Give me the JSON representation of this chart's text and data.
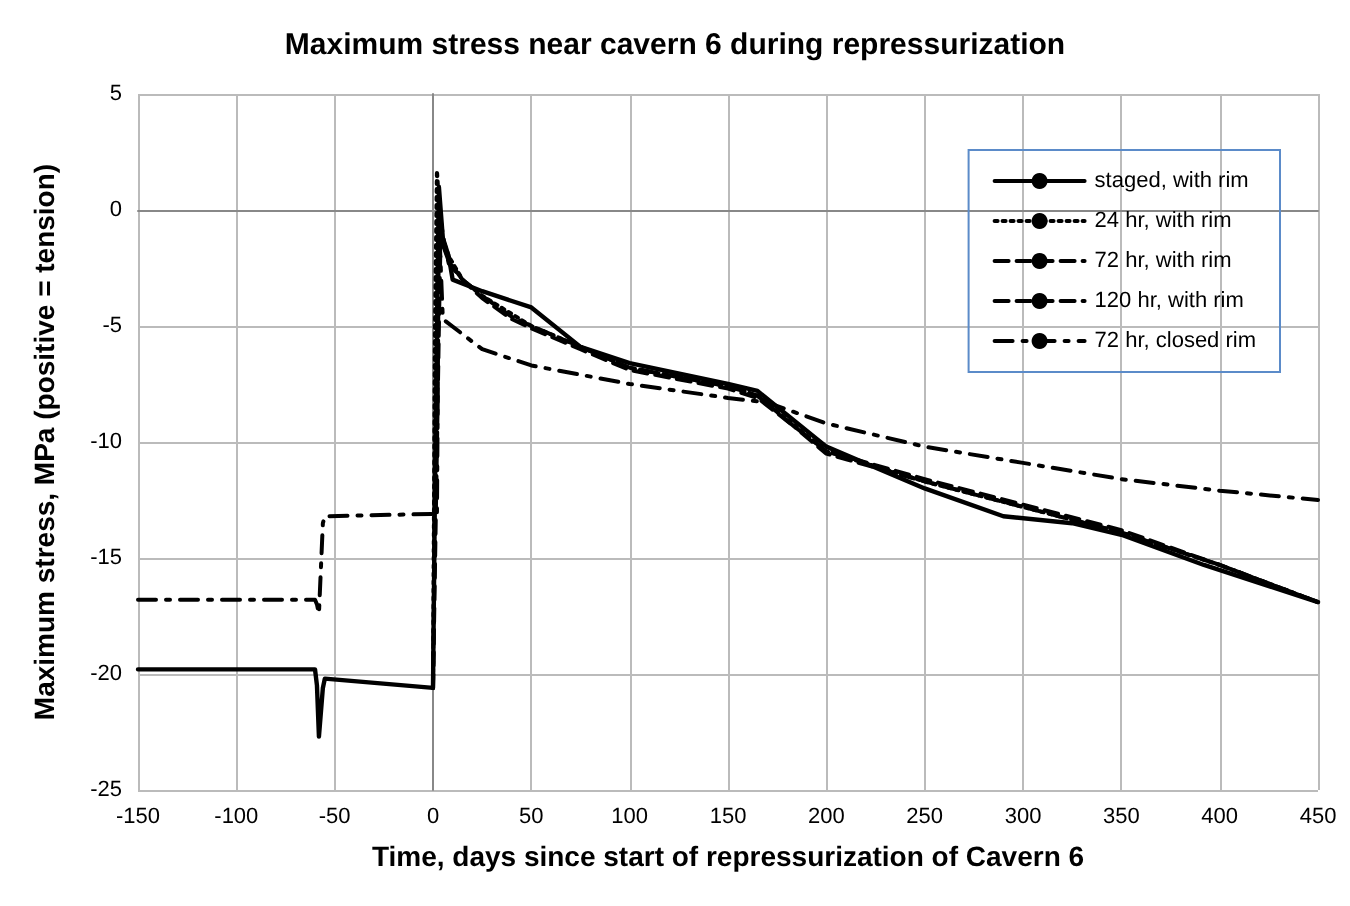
{
  "chart_data": {
    "type": "line",
    "title": "Maximum stress near cavern 6 during repressurization",
    "xlabel": "Time, days since start of repressurization of Cavern 6",
    "ylabel": "Maximum stress, MPa (positive = tension)",
    "xlim": [
      -150,
      450
    ],
    "xticks": [
      -150,
      -100,
      -50,
      0,
      50,
      100,
      150,
      200,
      250,
      300,
      350,
      400,
      450
    ],
    "ylim": [
      -25,
      5
    ],
    "yticks": [
      -25,
      -20,
      -15,
      -10,
      -5,
      0,
      5
    ],
    "grid": true,
    "legend": "top right",
    "marker": "none",
    "series": [
      {
        "name": "staged, with rim",
        "color": "#000000",
        "line_style": "solid",
        "x": [
          -150,
          -60,
          -59,
          -58,
          -56,
          -55,
          0,
          1,
          3,
          5,
          8,
          10,
          25,
          50,
          75,
          100,
          150,
          165,
          200,
          250,
          290,
          325,
          350,
          392,
          450
        ],
        "values": [
          -19.8,
          -19.8,
          -20.5,
          -22.7,
          -20.6,
          -20.2,
          -20.6,
          -12,
          1.0,
          -1.2,
          -2.0,
          -3.0,
          -3.5,
          -4.2,
          -5.9,
          -6.6,
          -7.5,
          -7.8,
          -10.2,
          -12.0,
          -13.2,
          -13.5,
          -14.0,
          -15.3,
          -16.9
        ]
      },
      {
        "name": "24 hr, with rim",
        "color": "#000000",
        "line_style": "dotted",
        "x": [
          0,
          1,
          2,
          4,
          8,
          15,
          25,
          50,
          75,
          100,
          150,
          165,
          200,
          250,
          300,
          350,
          400,
          450
        ],
        "values": [
          -20.6,
          -5,
          1.7,
          -1.0,
          -2.0,
          -3.0,
          -3.7,
          -5.0,
          -5.9,
          -6.8,
          -7.6,
          -8.0,
          -10.4,
          -11.7,
          -12.8,
          -13.9,
          -15.3,
          -16.9
        ]
      },
      {
        "name": "72 hr, with rim",
        "color": "#000000",
        "line_style": "dashed",
        "x": [
          0,
          2,
          3,
          5,
          8,
          15,
          25,
          40,
          50,
          75,
          100,
          150,
          165,
          200,
          250,
          300,
          350,
          400,
          450
        ],
        "values": [
          -20.6,
          -5,
          0.3,
          -1.5,
          -2.2,
          -3.0,
          -3.7,
          -4.6,
          -5.0,
          -5.9,
          -6.8,
          -7.6,
          -8.0,
          -10.5,
          -11.7,
          -12.8,
          -13.9,
          -15.3,
          -16.9
        ]
      },
      {
        "name": "120 hr, with rim",
        "color": "#000000",
        "line_style": "dashed",
        "x": [
          0,
          3,
          4,
          6,
          8,
          15,
          25,
          40,
          50,
          75,
          100,
          150,
          165,
          200,
          250,
          300,
          350,
          400,
          450
        ],
        "values": [
          -20.6,
          -5,
          -0.5,
          -1.6,
          -2.3,
          -3.0,
          -3.8,
          -4.7,
          -5.1,
          -6.0,
          -6.9,
          -7.7,
          -8.1,
          -10.4,
          -11.6,
          -12.7,
          -13.8,
          -15.3,
          -16.9
        ]
      },
      {
        "name": "72 hr, closed rim",
        "color": "#000000",
        "line_style": "dashdot",
        "x": [
          -150,
          -60,
          -59,
          -58,
          -56,
          -55,
          0,
          2,
          3,
          5,
          25,
          50,
          100,
          150,
          170,
          180,
          200,
          250,
          300,
          350,
          400,
          450
        ],
        "values": [
          -16.8,
          -16.8,
          -17.0,
          -17.4,
          -13.5,
          -13.2,
          -13.1,
          -13.2,
          -0.5,
          -4.7,
          -6.0,
          -6.7,
          -7.5,
          -8.1,
          -8.3,
          -8.6,
          -9.2,
          -10.2,
          -10.9,
          -11.6,
          -12.1,
          -12.5
        ]
      }
    ]
  }
}
